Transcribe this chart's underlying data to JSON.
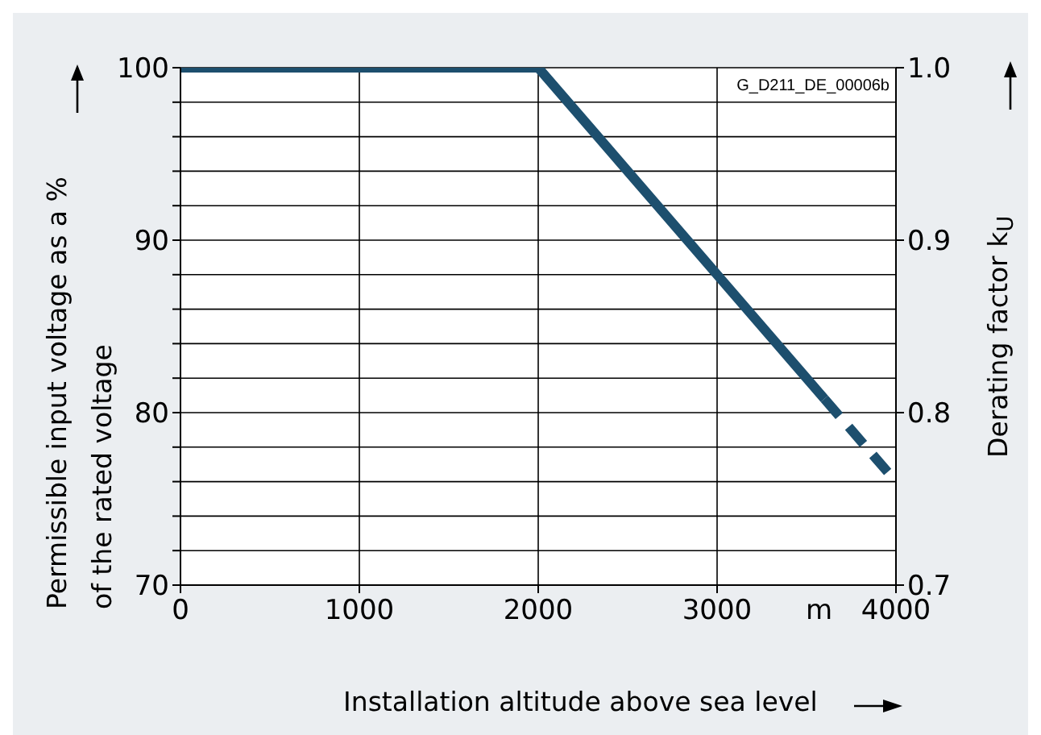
{
  "chart_data": {
    "type": "line",
    "xlabel": "Installation altitude above sea level",
    "ylabel": "Permissible input voltage as a %\nof the rated voltage",
    "y2label": "Derating factor k$_{U}$",
    "annotations": [
      "G_D211_DE_00006b",
      "m"
    ],
    "series": [
      {
        "color": "#1d4f6e",
        "x": [
          0,
          2000,
          3600
        ],
        "values": [
          100,
          100,
          80.8
        ],
        "line_style": "solid"
      },
      {
        "color": "#1d4f6e",
        "x": [
          3600,
          4000
        ],
        "values": [
          80.8,
          76
        ],
        "line_style": "dashed"
      }
    ],
    "xlim": [
      0,
      4000
    ],
    "xticks": [
      0,
      1000,
      2000,
      3000,
      4000
    ],
    "ylim": [
      70,
      100
    ],
    "yticks": [
      70,
      {
        "value": 72,
        "label": null
      },
      {
        "value": 74,
        "label": null
      },
      {
        "value": 76,
        "label": null
      },
      {
        "value": 78,
        "label": null
      },
      80,
      {
        "value": 82,
        "label": null
      },
      {
        "value": 84,
        "label": null
      },
      {
        "value": 86,
        "label": null
      },
      {
        "value": 88,
        "label": null
      },
      90,
      {
        "value": 92,
        "label": null
      },
      {
        "value": 94,
        "label": null
      },
      {
        "value": 96,
        "label": null
      },
      {
        "value": 98,
        "label": null
      },
      100
    ],
    "y2lim": [
      0.7,
      1.0
    ],
    "y2ticks": [
      {
        "value": 0.7,
        "label": "0.7"
      },
      {
        "value": 0.8,
        "label": "0.8"
      },
      {
        "value": 0.9,
        "label": "0.9"
      },
      {
        "value": 1.0,
        "label": "1.0"
      }
    ],
    "grid": true,
    "marker": "none"
  }
}
